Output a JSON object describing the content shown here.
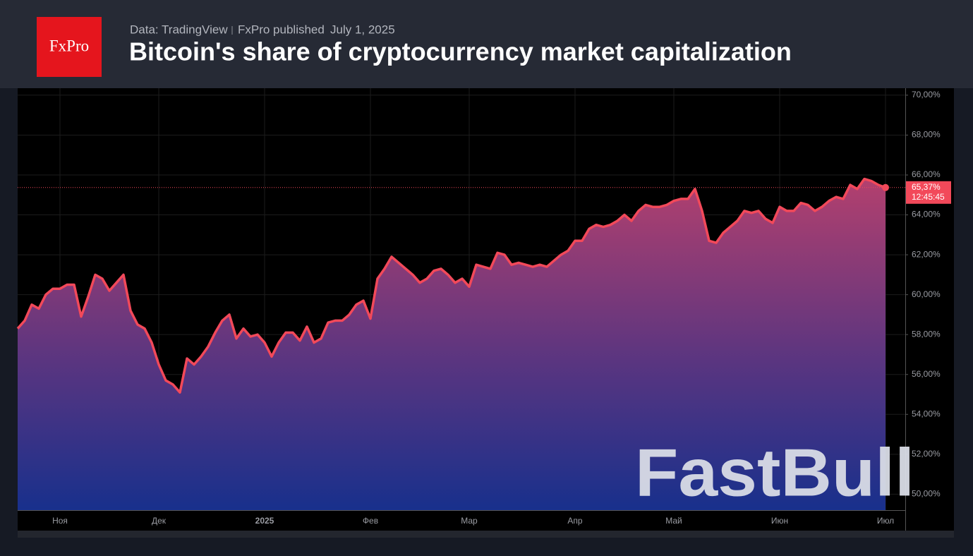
{
  "header": {
    "logo": "FxPro",
    "source": "Data: TradingView",
    "publisher": "FxPro published",
    "date": "July 1, 2025",
    "watermark": "FastBull"
  },
  "chart_data": {
    "type": "area",
    "title": "Bitcoin's share of cryptocurrency market capitalization",
    "categories": [
      null,
      null,
      null,
      null,
      null,
      null,
      "Ноя",
      null,
      null,
      null,
      null,
      null,
      null,
      null,
      null,
      null,
      null,
      null,
      null,
      null,
      "Дек",
      null,
      null,
      null,
      null,
      null,
      null,
      null,
      null,
      null,
      null,
      null,
      null,
      null,
      null,
      "2025",
      null,
      null,
      null,
      null,
      null,
      null,
      null,
      null,
      null,
      null,
      null,
      null,
      null,
      null,
      "Фев",
      null,
      null,
      null,
      null,
      null,
      null,
      null,
      null,
      null,
      null,
      null,
      null,
      null,
      "Мар",
      null,
      null,
      null,
      null,
      null,
      null,
      null,
      null,
      null,
      null,
      null,
      null,
      null,
      null,
      "Апр",
      null,
      null,
      null,
      null,
      null,
      null,
      null,
      null,
      null,
      null,
      null,
      null,
      null,
      "Май",
      null,
      null,
      null,
      null,
      null,
      null,
      null,
      null,
      null,
      null,
      null,
      null,
      null,
      null,
      "Июн",
      null,
      null,
      null,
      null,
      null,
      null,
      null,
      null,
      null,
      null,
      null,
      null,
      null,
      null,
      "Июл"
    ],
    "values": [
      58.3,
      58.7,
      59.5,
      59.3,
      60.0,
      60.3,
      60.3,
      60.5,
      60.5,
      58.9,
      59.9,
      61.0,
      60.8,
      60.2,
      60.6,
      61.0,
      59.2,
      58.5,
      58.3,
      57.6,
      56.5,
      55.7,
      55.5,
      55.1,
      56.8,
      56.5,
      56.9,
      57.4,
      58.1,
      58.7,
      59.0,
      57.8,
      58.3,
      57.9,
      58.0,
      57.6,
      56.9,
      57.6,
      58.1,
      58.1,
      57.7,
      58.4,
      57.6,
      57.8,
      58.6,
      58.7,
      58.7,
      59.0,
      59.5,
      59.7,
      58.8,
      60.8,
      61.3,
      61.9,
      61.6,
      61.3,
      61.0,
      60.6,
      60.8,
      61.2,
      61.3,
      61.0,
      60.6,
      60.8,
      60.4,
      61.5,
      61.4,
      61.3,
      62.1,
      62.0,
      61.5,
      61.6,
      61.5,
      61.4,
      61.5,
      61.4,
      61.7,
      62.0,
      62.2,
      62.7,
      62.7,
      63.3,
      63.5,
      63.4,
      63.5,
      63.7,
      64.0,
      63.7,
      64.2,
      64.5,
      64.4,
      64.4,
      64.5,
      64.7,
      64.8,
      64.8,
      65.3,
      64.2,
      62.7,
      62.6,
      63.1,
      63.4,
      63.7,
      64.2,
      64.1,
      64.2,
      63.8,
      63.6,
      64.4,
      64.2,
      64.2,
      64.6,
      64.5,
      64.2,
      64.4,
      64.7,
      64.9,
      64.8,
      65.5,
      65.3,
      65.8,
      65.7,
      65.5,
      65.37
    ],
    "value_labels": [
      null,
      null,
      null,
      null,
      null,
      null,
      null,
      null,
      null,
      null,
      null,
      null,
      null,
      null,
      null,
      null,
      null,
      null,
      null,
      null,
      null,
      null,
      null,
      null,
      null,
      null,
      null,
      null,
      null,
      null,
      null,
      null,
      null,
      null,
      null,
      null,
      null,
      null,
      null,
      null,
      null,
      null,
      null,
      null,
      null,
      null,
      null,
      null,
      null,
      null,
      null,
      null,
      null,
      null,
      null,
      null,
      null,
      null,
      null,
      null,
      null,
      null,
      null,
      null,
      null,
      null,
      null,
      null,
      null,
      null,
      null,
      null,
      null,
      null,
      null,
      null,
      null,
      null,
      null,
      null,
      null,
      null,
      null,
      null,
      null,
      null,
      null,
      null,
      null,
      null,
      null,
      null,
      null,
      null,
      null,
      null,
      null,
      null,
      null,
      null,
      null,
      null,
      null,
      null,
      null,
      null,
      null,
      null,
      null,
      null,
      null,
      null,
      null,
      null,
      null,
      null,
      null,
      null,
      null,
      null,
      null,
      null,
      null,
      "65,37%"
    ],
    "last_time": "12:45:45",
    "color": "#f2495a",
    "ylim": [
      49.2,
      70.35
    ],
    "yticks": [
      {
        "value": 50,
        "label": "50,00%"
      },
      {
        "value": 52,
        "label": "52,00%"
      },
      {
        "value": 54,
        "label": "54,00%"
      },
      {
        "value": 56,
        "label": "56,00%"
      },
      {
        "value": 58,
        "label": "58,00%"
      },
      {
        "value": 60,
        "label": "60,00%"
      },
      {
        "value": 62,
        "label": "62,00%"
      },
      {
        "value": 64,
        "label": "64,00%"
      },
      {
        "value": 66,
        "label": "66,00%"
      },
      {
        "value": 68,
        "label": "68,00%"
      },
      {
        "value": 70,
        "label": "70,00%"
      }
    ],
    "grid": true
  }
}
